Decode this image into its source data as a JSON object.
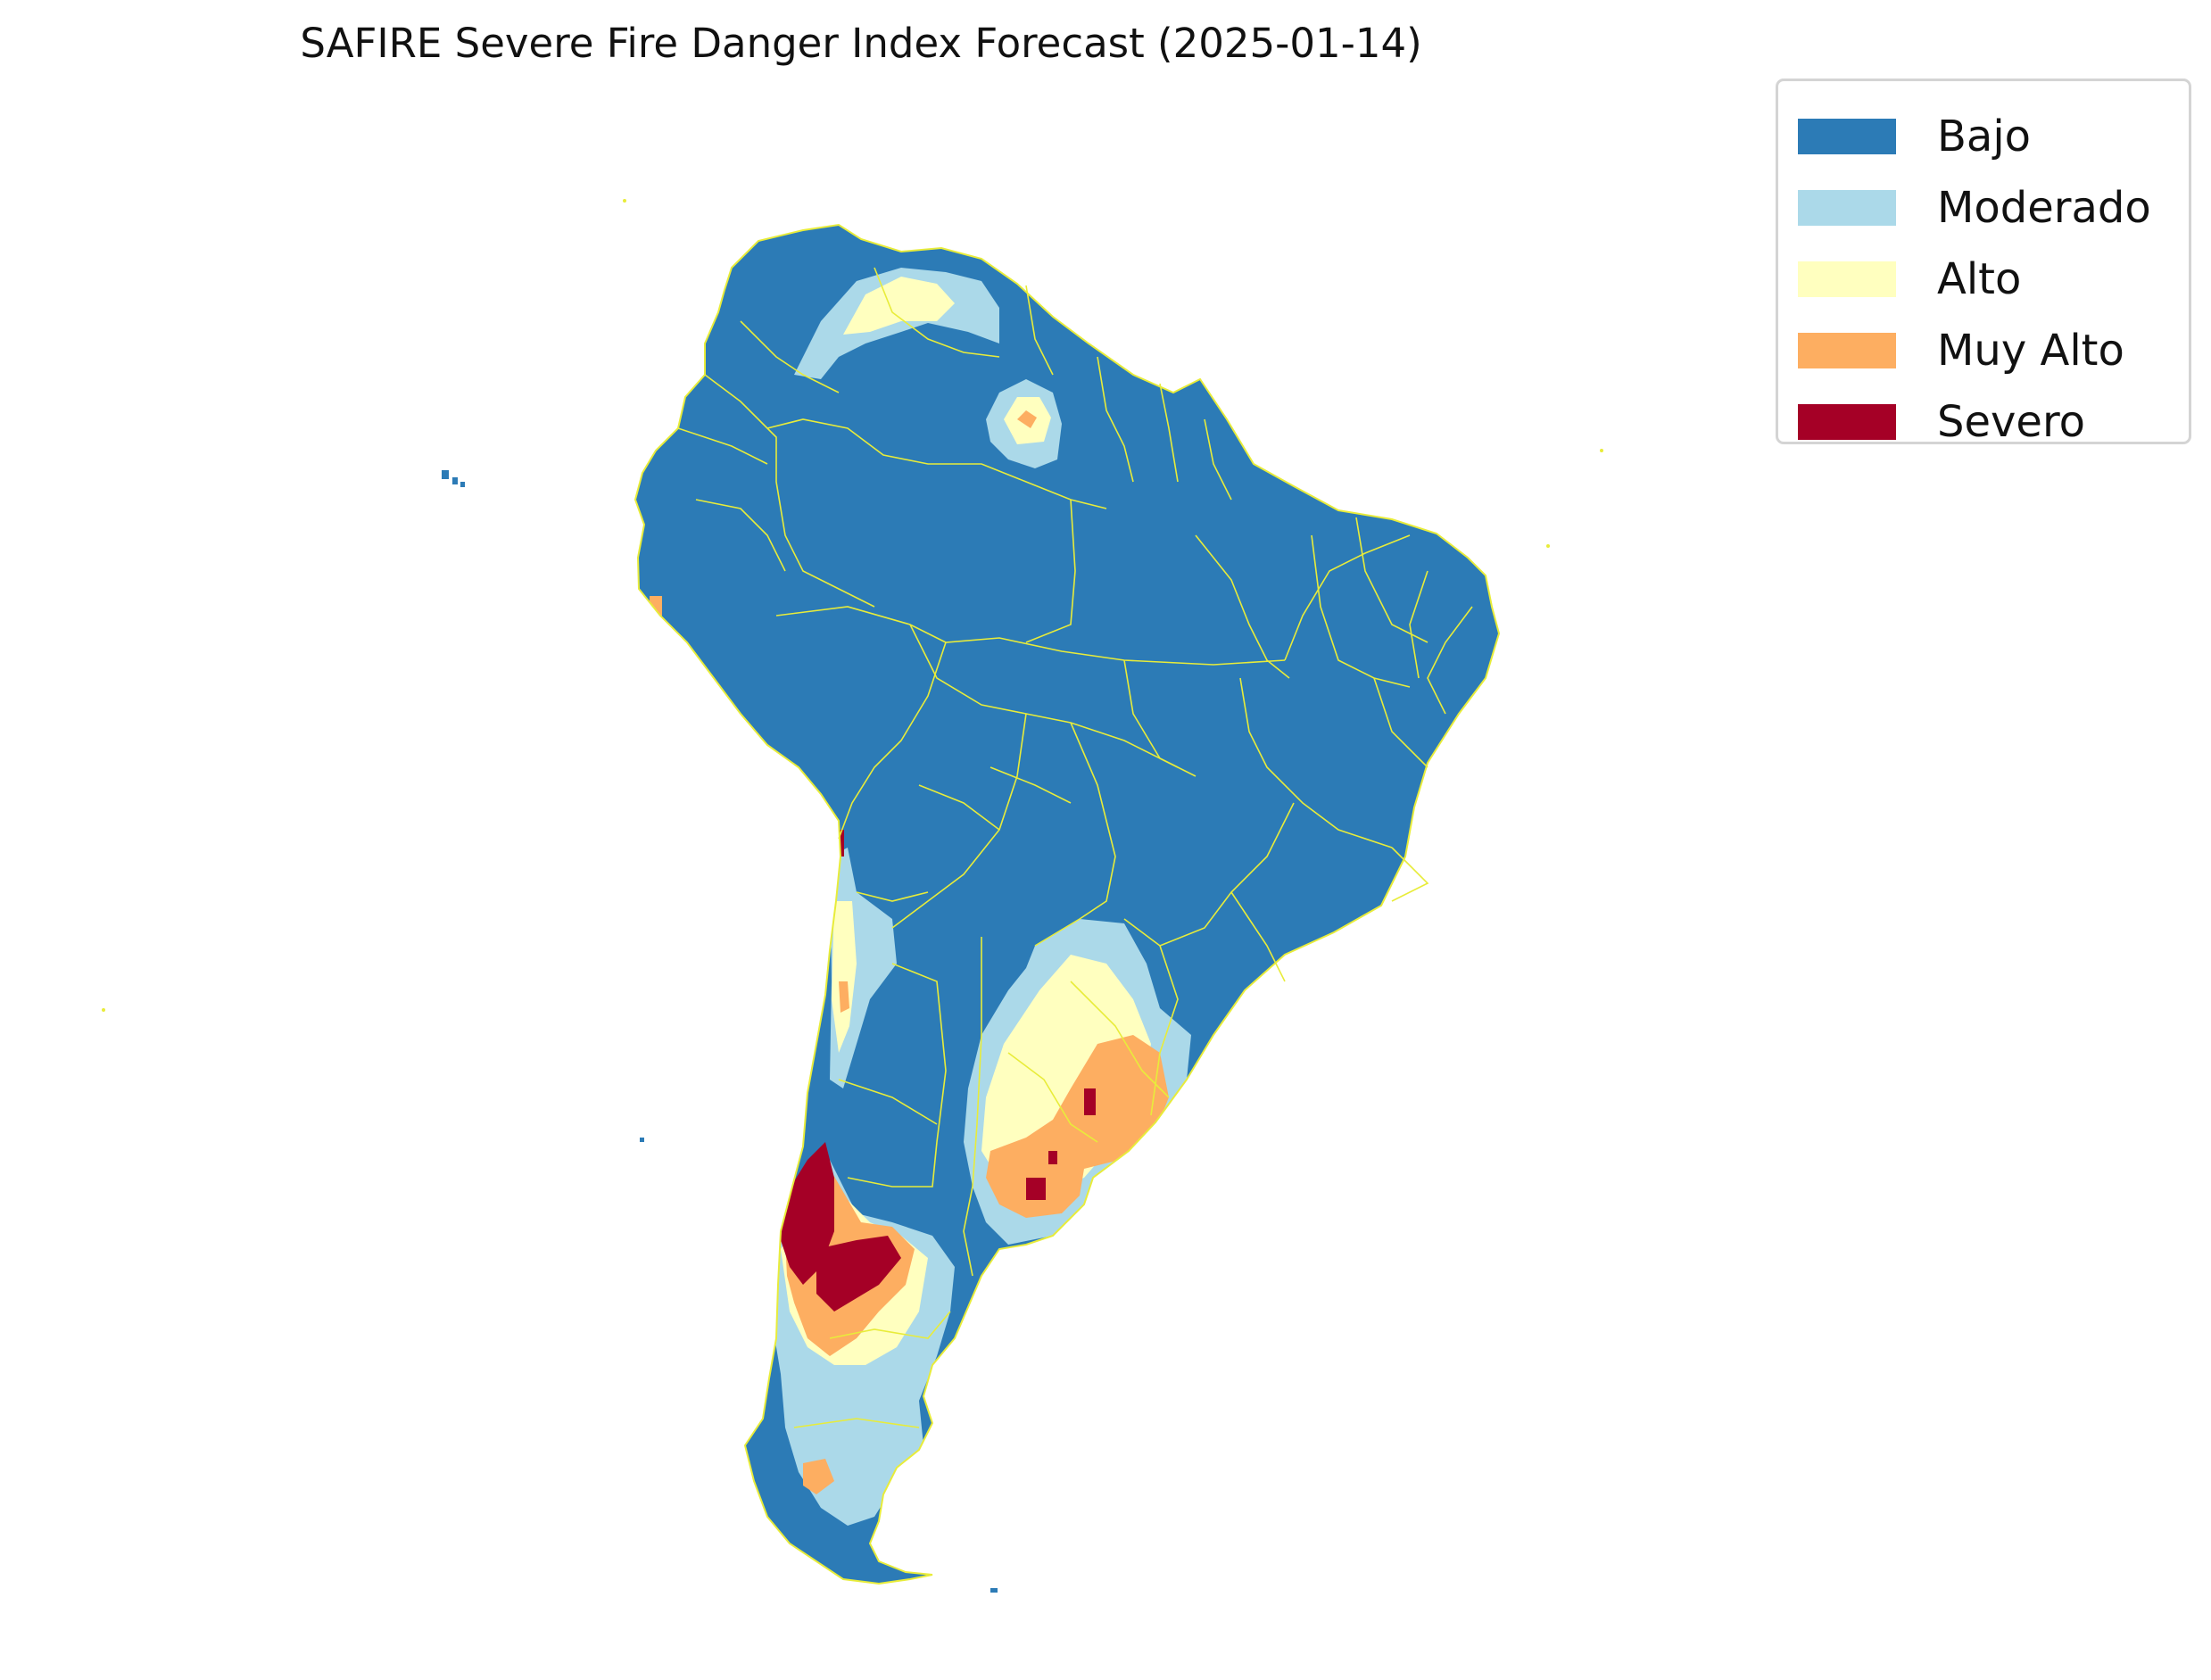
{
  "title": "SAFIRE Severe Fire Danger Index Forecast (2025-01-14)",
  "legend": {
    "items": [
      {
        "label": "Bajo",
        "color": "#2c7bb6"
      },
      {
        "label": "Moderado",
        "color": "#abd9e9"
      },
      {
        "label": "Alto",
        "color": "#ffffbf"
      },
      {
        "label": "Muy Alto",
        "color": "#fdae61"
      },
      {
        "label": "Severo",
        "color": "#a50026"
      }
    ]
  },
  "map": {
    "region": "South America",
    "boundary_color": "#e8ec3a",
    "background": "#ffffff"
  }
}
